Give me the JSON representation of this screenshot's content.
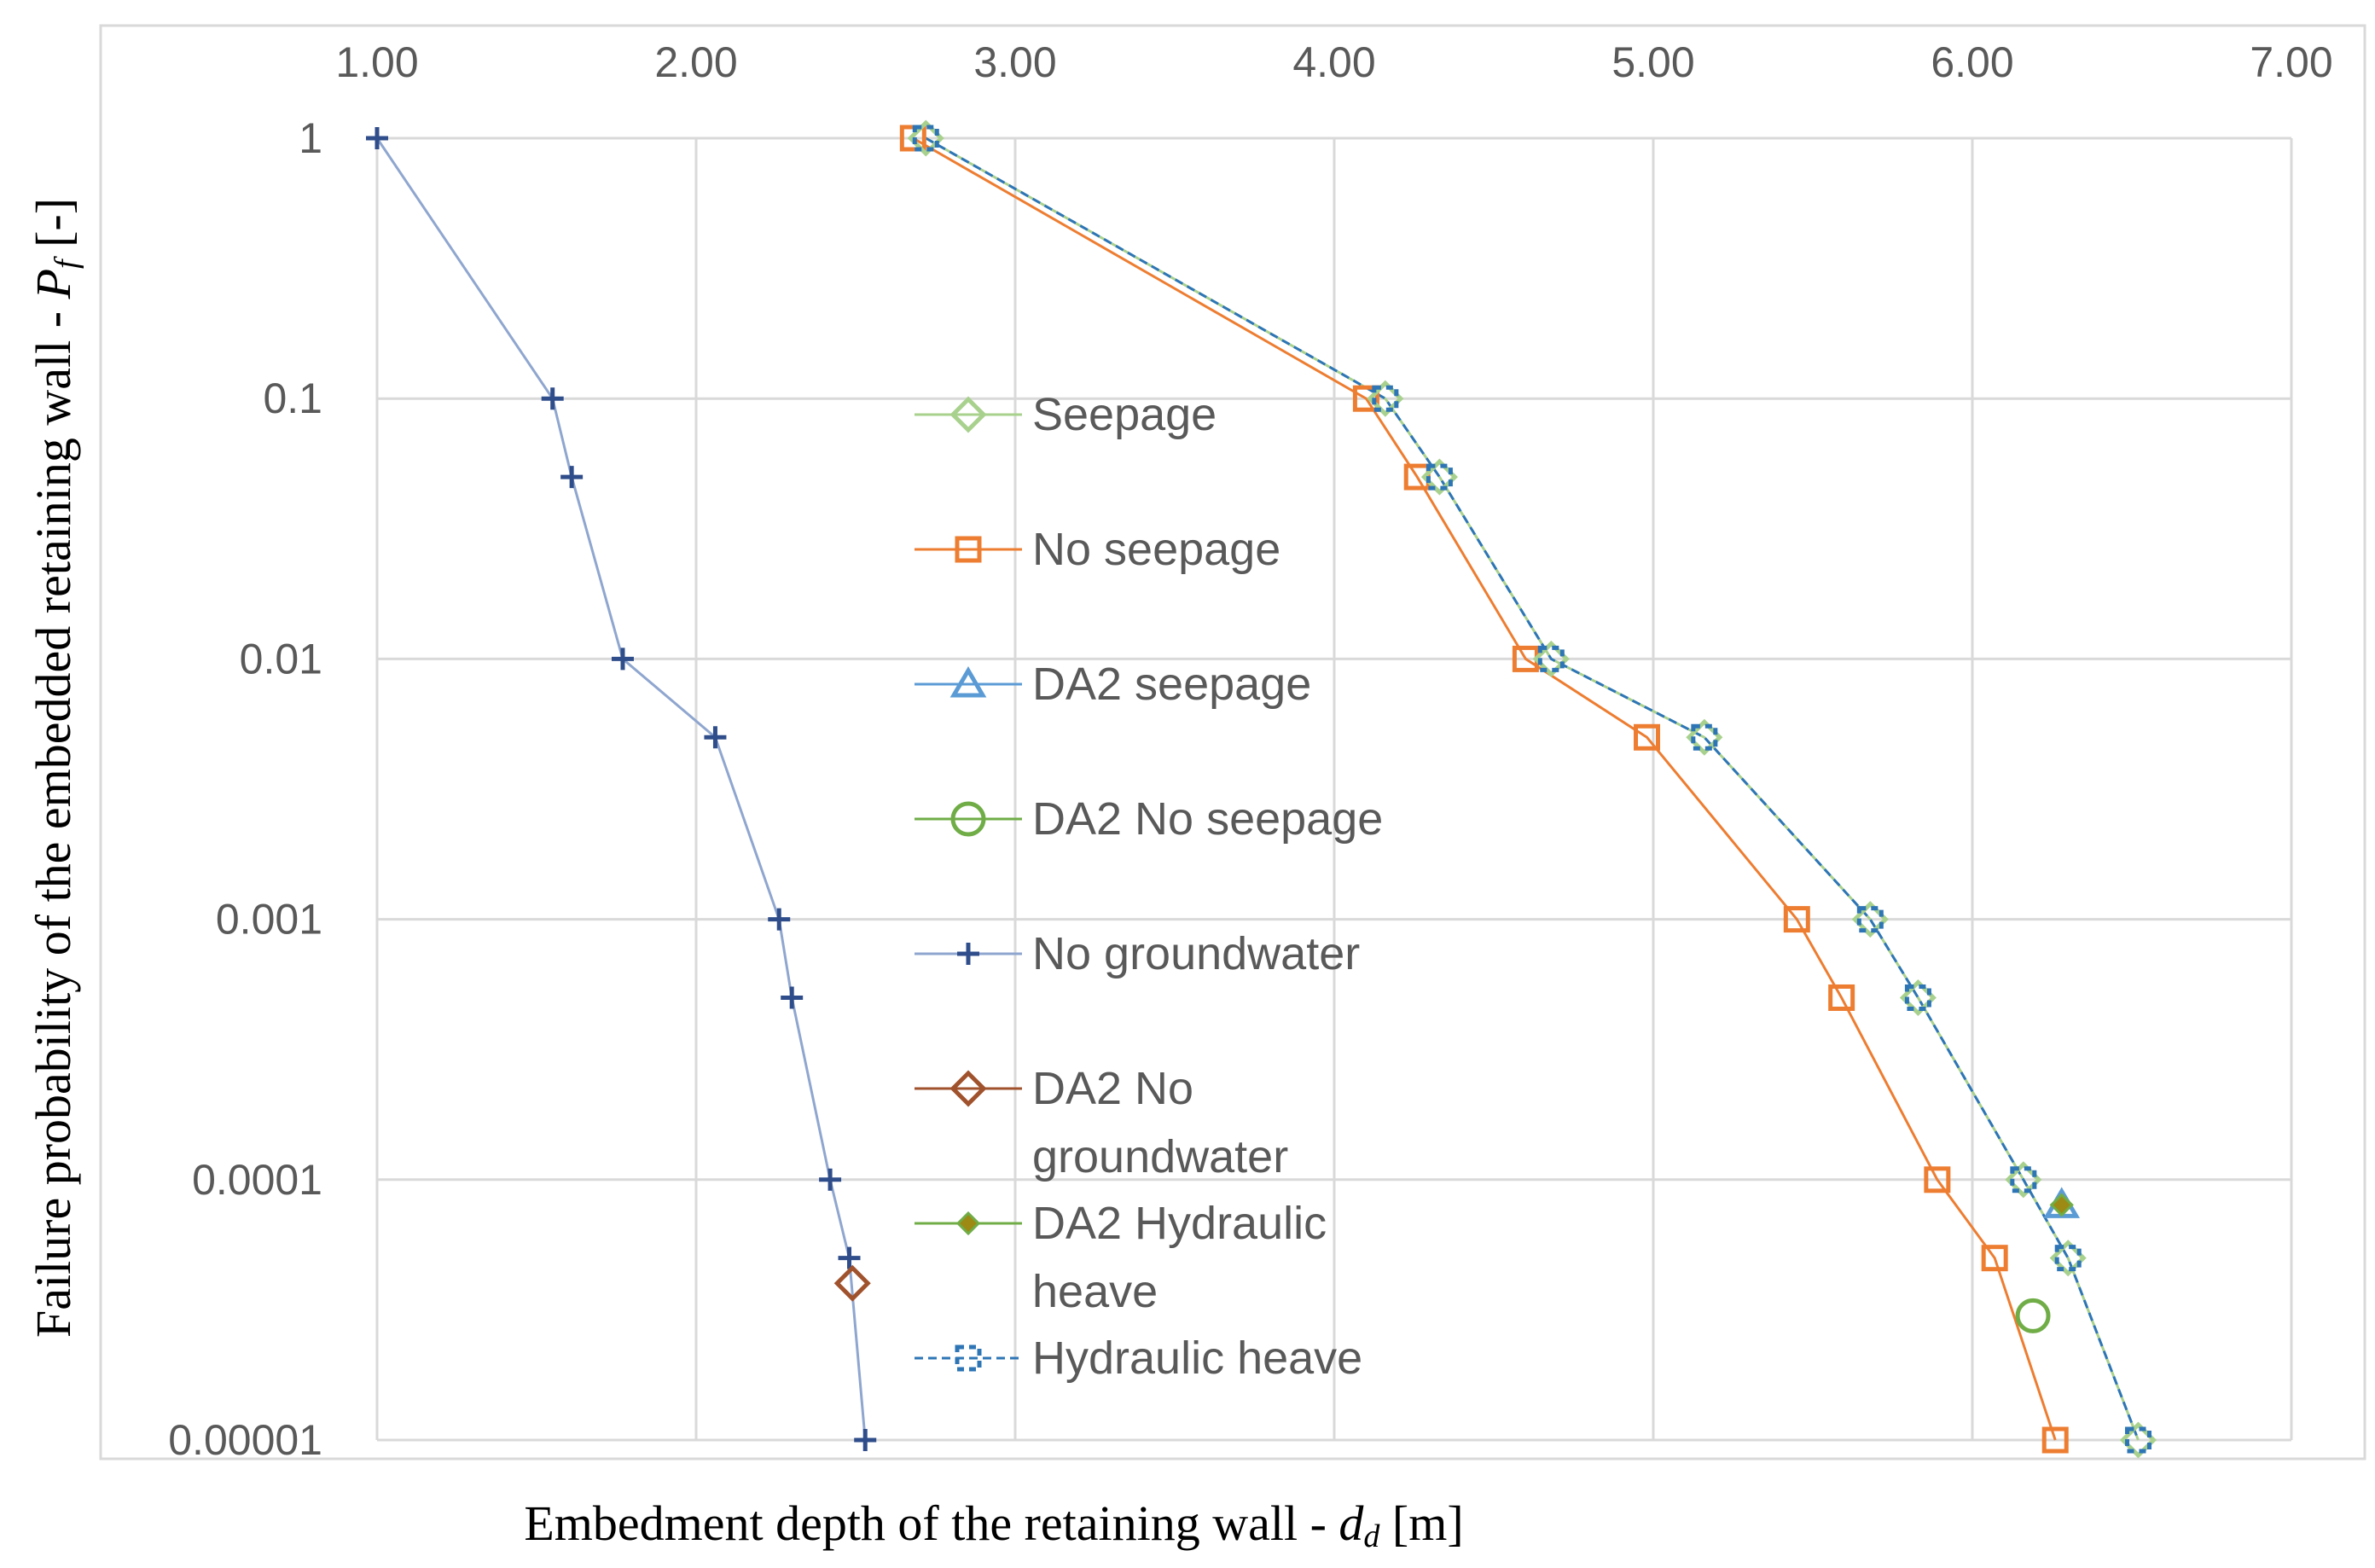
{
  "chart_data": {
    "type": "line",
    "title": "",
    "xlabel": "Embedment depth of the retaining wall - ",
    "xlabel_symbol": "d",
    "xlabel_subscript": "d",
    "xlabel_unit": " [m]",
    "ylabel": "Failure probability of the embedded retaining wall - ",
    "ylabel_symbol": "P",
    "ylabel_subscript": "f",
    "ylabel_unit": " [-]",
    "xlim": [
      1.0,
      7.0
    ],
    "x_axis_position": "top",
    "xticks": [
      1,
      2,
      3,
      4,
      5,
      6,
      7
    ],
    "xtick_labels": [
      "1.00",
      "2.00",
      "3.00",
      "4.00",
      "5.00",
      "6.00",
      "7.00"
    ],
    "yscale": "log",
    "ylim": [
      1e-05,
      1
    ],
    "yticks": [
      1,
      0.1,
      0.01,
      0.001,
      0.0001,
      1e-05
    ],
    "ytick_labels": [
      "1",
      "0.1",
      "0.01",
      "0.001",
      "0.0001",
      "0.00001"
    ],
    "grid": true,
    "legend_position": "center",
    "series": [
      {
        "name": "Seepage",
        "color": "#a9d18e",
        "marker": "diamond-open",
        "line": "solid",
        "x": [
          2.72,
          4.16,
          4.33,
          4.68,
          5.16,
          5.68,
          5.83,
          6.16,
          6.3,
          6.52
        ],
        "y": [
          1,
          0.1,
          0.05,
          0.01,
          0.005,
          0.001,
          0.0005,
          0.0001,
          5e-05,
          1e-05
        ]
      },
      {
        "name": "No seepage",
        "color": "#ed7d31",
        "marker": "square-open",
        "line": "solid",
        "x": [
          2.68,
          4.1,
          4.26,
          4.6,
          4.98,
          5.45,
          5.59,
          5.89,
          6.07,
          6.26
        ],
        "y": [
          1,
          0.1,
          0.05,
          0.01,
          0.005,
          0.001,
          0.0005,
          0.0001,
          5e-05,
          1e-05
        ]
      },
      {
        "name": "DA2 seepage",
        "color": "#5b9bd5",
        "marker": "triangle-open",
        "line": "none",
        "x": [
          6.28
        ],
        "y": [
          8e-05
        ]
      },
      {
        "name": "DA2 No seepage",
        "color": "#70ad47",
        "marker": "circle-open",
        "line": "none",
        "x": [
          6.19
        ],
        "y": [
          3e-05
        ]
      },
      {
        "name": "No groundwater",
        "color": "#2f4d8a",
        "line_color": "#8fa6cf",
        "marker": "plus",
        "line": "solid",
        "x": [
          1.0,
          1.55,
          1.61,
          1.77,
          2.06,
          2.26,
          2.3,
          2.42,
          2.48,
          2.53
        ],
        "y": [
          1,
          0.1,
          0.05,
          0.01,
          0.005,
          0.001,
          0.0005,
          0.0001,
          5e-05,
          1e-05
        ]
      },
      {
        "name": "DA2 No groundwater",
        "color": "#a0522d",
        "marker": "diamond-open",
        "line": "none",
        "x": [
          2.49
        ],
        "y": [
          4e-05
        ]
      },
      {
        "name": "DA2 Hydraulic heave",
        "color": "#70ad47",
        "fill": "#9c8a14",
        "marker": "diamond-filled",
        "line": "none",
        "x": [
          6.28
        ],
        "y": [
          8e-05
        ]
      },
      {
        "name": "Hydraulic heave",
        "color": "#2e75b6",
        "marker": "square-dashed",
        "line": "dashed",
        "x": [
          2.72,
          4.16,
          4.33,
          4.68,
          5.16,
          5.68,
          5.83,
          6.16,
          6.3,
          6.52
        ],
        "y": [
          1,
          0.1,
          0.05,
          0.01,
          0.005,
          0.001,
          0.0005,
          0.0001,
          5e-05,
          1e-05
        ]
      }
    ],
    "legend": [
      {
        "lines": [
          "Seepage"
        ],
        "series": "Seepage"
      },
      {
        "lines": [
          "No seepage"
        ],
        "series": "No seepage"
      },
      {
        "lines": [
          "DA2 seepage"
        ],
        "series": "DA2 seepage"
      },
      {
        "lines": [
          "DA2 No seepage"
        ],
        "series": "DA2 No seepage"
      },
      {
        "lines": [
          "No groundwater"
        ],
        "series": "No groundwater"
      },
      {
        "lines": [
          "DA2 No",
          "groundwater"
        ],
        "series": "DA2 No groundwater"
      },
      {
        "lines": [
          "DA2 Hydraulic",
          "heave"
        ],
        "series": "DA2 Hydraulic heave"
      },
      {
        "lines": [
          "Hydraulic heave"
        ],
        "series": "Hydraulic heave"
      }
    ]
  }
}
